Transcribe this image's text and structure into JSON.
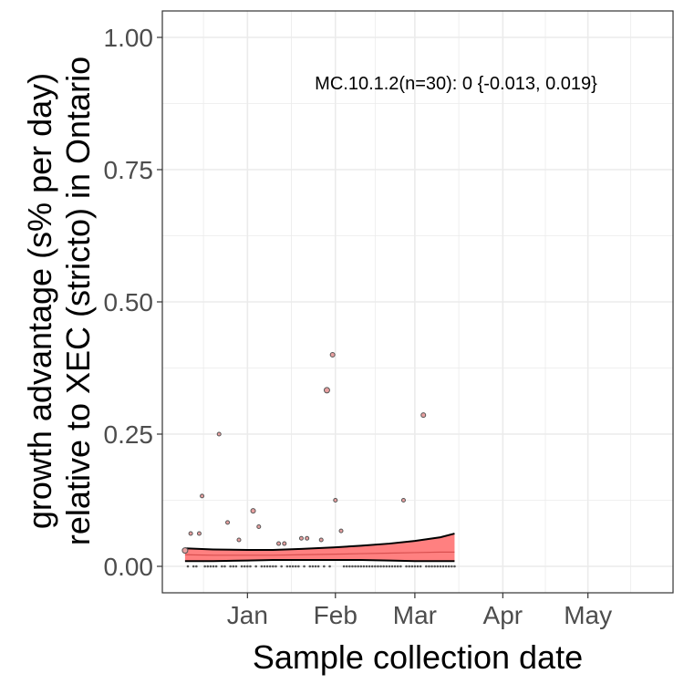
{
  "chart_data": {
    "type": "scatter",
    "title": "",
    "xlabel": "Sample collection date",
    "ylabel_line1": "growth advantage (s% per day)",
    "ylabel_line2": "relative to XEC (stricto) in Ontario",
    "annotation": "MC.10.1.2(n=30): 0 {-0.013, 0.019}",
    "xlim": [
      "2024-12-02",
      "2025-05-31"
    ],
    "ylim": [
      -0.05,
      1.05
    ],
    "x_ticks": [
      {
        "date": "2025-01-01",
        "label": "Jan"
      },
      {
        "date": "2025-02-01",
        "label": "Feb"
      },
      {
        "date": "2025-03-01",
        "label": "Mar"
      },
      {
        "date": "2025-04-01",
        "label": "Apr"
      },
      {
        "date": "2025-05-01",
        "label": "May"
      }
    ],
    "y_ticks": [
      {
        "value": 0,
        "label": "0.00"
      },
      {
        "value": 0.25,
        "label": "0.25"
      },
      {
        "value": 0.5,
        "label": "0.50"
      },
      {
        "value": 0.75,
        "label": "0.75"
      },
      {
        "value": 1.0,
        "label": "1.00"
      }
    ],
    "grid": true,
    "colors": {
      "ribbon": "#FF8080",
      "fit_line": "#D95050",
      "bound_line": "#000000",
      "point_fill": "#E8A0A0",
      "point_stroke": "#555555",
      "grid": "#EBEBEB",
      "panel_border": "#333333"
    },
    "fit": {
      "x": [
        "2024-12-10",
        "2024-12-20",
        "2025-01-01",
        "2025-01-10",
        "2025-01-20",
        "2025-02-01",
        "2025-02-10",
        "2025-02-20",
        "2025-03-01",
        "2025-03-10",
        "2025-03-15"
      ],
      "mean": [
        0.022,
        0.021,
        0.021,
        0.021,
        0.022,
        0.023,
        0.024,
        0.025,
        0.026,
        0.027,
        0.027
      ],
      "upper": [
        0.034,
        0.032,
        0.031,
        0.031,
        0.033,
        0.036,
        0.039,
        0.043,
        0.048,
        0.055,
        0.062
      ],
      "lower": [
        0.01,
        0.01,
        0.011,
        0.012,
        0.012,
        0.012,
        0.012,
        0.011,
        0.01,
        0.01,
        0.01
      ]
    },
    "points": [
      {
        "date": "2024-12-10",
        "y": 0.03,
        "n": 3
      },
      {
        "date": "2024-12-12",
        "y": 0.062,
        "n": 1
      },
      {
        "date": "2024-12-15",
        "y": 0.062,
        "n": 1
      },
      {
        "date": "2024-12-16",
        "y": 0.133,
        "n": 1
      },
      {
        "date": "2024-12-22",
        "y": 0.25,
        "n": 1
      },
      {
        "date": "2024-12-25",
        "y": 0.083,
        "n": 1
      },
      {
        "date": "2024-12-29",
        "y": 0.05,
        "n": 1
      },
      {
        "date": "2025-01-03",
        "y": 0.105,
        "n": 2
      },
      {
        "date": "2025-01-05",
        "y": 0.075,
        "n": 1
      },
      {
        "date": "2025-01-12",
        "y": 0.043,
        "n": 1
      },
      {
        "date": "2025-01-14",
        "y": 0.043,
        "n": 1
      },
      {
        "date": "2025-01-20",
        "y": 0.053,
        "n": 1
      },
      {
        "date": "2025-01-22",
        "y": 0.053,
        "n": 1
      },
      {
        "date": "2025-01-27",
        "y": 0.05,
        "n": 1
      },
      {
        "date": "2025-01-29",
        "y": 0.333,
        "n": 3
      },
      {
        "date": "2025-01-31",
        "y": 0.4,
        "n": 2
      },
      {
        "date": "2025-02-01",
        "y": 0.125,
        "n": 1
      },
      {
        "date": "2025-02-03",
        "y": 0.067,
        "n": 1
      },
      {
        "date": "2025-02-25",
        "y": 0.125,
        "n": 1
      },
      {
        "date": "2025-03-04",
        "y": 0.286,
        "n": 2
      }
    ],
    "zero_points": [
      "2024-12-11",
      "2024-12-13",
      "2024-12-14",
      "2024-12-17",
      "2024-12-18",
      "2024-12-19",
      "2024-12-20",
      "2024-12-21",
      "2024-12-23",
      "2024-12-24",
      "2024-12-26",
      "2024-12-27",
      "2024-12-28",
      "2024-12-30",
      "2024-12-31",
      "2025-01-01",
      "2025-01-02",
      "2025-01-04",
      "2025-01-06",
      "2025-01-07",
      "2025-01-08",
      "2025-01-09",
      "2025-01-10",
      "2025-01-11",
      "2025-01-13",
      "2025-01-15",
      "2025-01-16",
      "2025-01-17",
      "2025-01-18",
      "2025-01-19",
      "2025-01-21",
      "2025-01-23",
      "2025-01-24",
      "2025-01-25",
      "2025-01-26",
      "2025-01-28",
      "2025-01-30",
      "2025-02-04",
      "2025-02-05",
      "2025-02-06",
      "2025-02-07",
      "2025-02-08",
      "2025-02-09",
      "2025-02-10",
      "2025-02-11",
      "2025-02-12",
      "2025-02-13",
      "2025-02-14",
      "2025-02-15",
      "2025-02-16",
      "2025-02-17",
      "2025-02-18",
      "2025-02-19",
      "2025-02-20",
      "2025-02-21",
      "2025-02-22",
      "2025-02-23",
      "2025-02-24",
      "2025-02-26",
      "2025-02-27",
      "2025-02-28",
      "2025-03-01",
      "2025-03-02",
      "2025-03-03",
      "2025-03-05",
      "2025-03-06",
      "2025-03-07",
      "2025-03-08",
      "2025-03-09",
      "2025-03-10",
      "2025-03-11",
      "2025-03-12",
      "2025-03-13",
      "2025-03-14",
      "2025-03-15"
    ]
  }
}
